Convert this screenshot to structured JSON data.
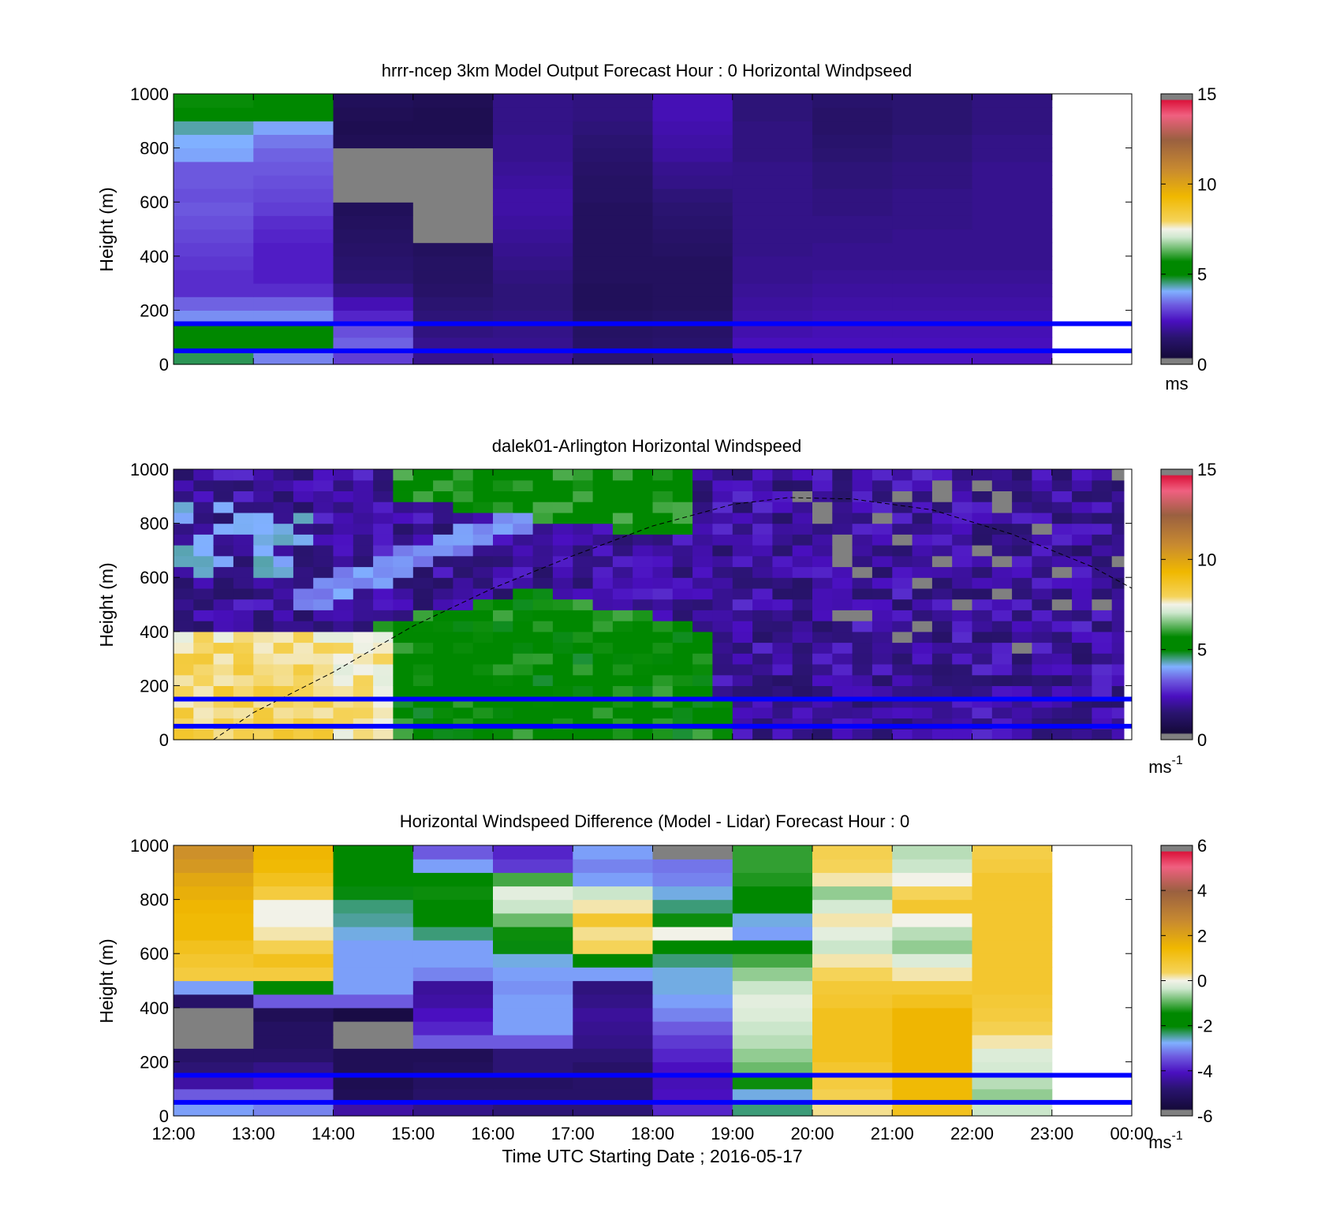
{
  "figure": {
    "xlabel": "Time UTC  Starting Date ; 2016-05-17",
    "x_tick_labels": [
      "12:00",
      "13:00",
      "14:00",
      "15:00",
      "16:00",
      "17:00",
      "18:00",
      "19:00",
      "20:00",
      "21:00",
      "22:00",
      "23:00",
      "00:00"
    ]
  },
  "panels": [
    {
      "title": "hrrr-ncep 3km Model Output   Forecast Hour : 0 Horizontal Windpseed",
      "ylabel": "Height (m)",
      "colorbar_unit": "ms",
      "colorbar_unit_sup": ""
    },
    {
      "title": "dalek01-Arlington  Horizontal Windspeed",
      "ylabel": "Height (m)",
      "colorbar_unit": "ms",
      "colorbar_unit_sup": "-1"
    },
    {
      "title": "Horizontal Windspeed Difference (Model - Lidar) Forecast Hour : 0",
      "ylabel": "Height (m)",
      "colorbar_unit": "ms",
      "colorbar_unit_sup": "-1"
    }
  ],
  "chart_data": [
    {
      "type": "heatmap",
      "title": "hrrr-ncep 3km Model Output   Forecast Hour : 0 Horizontal Windpseed",
      "xlabel": "",
      "ylabel": "Height (m)",
      "x_hours": [
        12,
        13,
        14,
        15,
        16,
        17,
        18,
        19,
        20,
        21,
        22,
        23,
        24
      ],
      "xlim": [
        12,
        24
      ],
      "ylim": [
        0,
        1000
      ],
      "yticks": [
        0,
        200,
        400,
        600,
        800,
        1000
      ],
      "colorbar": {
        "range": [
          0,
          15
        ],
        "ticks": [
          0,
          5,
          10,
          15
        ],
        "unit": "ms",
        "colormap": "purple-blue-green-white-yellow-brown-red"
      },
      "reference_lines_m": [
        50,
        150
      ],
      "reference_line_color": "#0000ff",
      "column_hours": [
        12,
        13,
        14,
        15,
        16,
        17,
        18,
        19,
        20,
        21,
        22
      ],
      "row_heights_m": [
        25,
        75,
        125,
        175,
        225,
        275,
        325,
        375,
        425,
        475,
        525,
        575,
        625,
        675,
        725,
        775,
        825,
        875,
        925,
        975
      ],
      "speed_ms": [
        [
          4.5,
          3.5,
          2.8,
          1.6,
          1.8,
          1.2,
          1.3,
          2.2,
          2.3,
          2.3,
          2.3
        ],
        [
          5.0,
          5.0,
          3.2,
          1.6,
          1.6,
          1.0,
          1.1,
          2.2,
          2.2,
          2.2,
          2.2
        ],
        [
          5.0,
          5.0,
          3.0,
          1.4,
          1.5,
          0.9,
          1.0,
          2.0,
          2.1,
          2.1,
          2.1
        ],
        [
          3.6,
          3.6,
          2.5,
          1.3,
          1.4,
          0.8,
          0.9,
          1.9,
          2.0,
          2.0,
          2.0
        ],
        [
          3.2,
          3.2,
          2.1,
          1.2,
          1.3,
          0.7,
          0.8,
          1.8,
          1.9,
          1.9,
          1.9
        ],
        [
          2.6,
          2.6,
          1.5,
          1.0,
          1.3,
          0.7,
          0.8,
          1.7,
          1.8,
          1.8,
          1.8
        ],
        [
          2.6,
          2.4,
          1.2,
          0.9,
          1.4,
          0.8,
          0.8,
          1.6,
          1.7,
          1.7,
          1.7
        ],
        [
          2.7,
          2.4,
          1.1,
          0.9,
          1.5,
          0.8,
          0.8,
          1.6,
          1.6,
          1.6,
          1.6
        ],
        [
          2.8,
          2.4,
          1.0,
          0.8,
          1.6,
          0.8,
          0.9,
          1.5,
          1.6,
          1.6,
          1.6
        ],
        [
          2.9,
          2.5,
          0.9,
          null,
          1.7,
          0.8,
          1.0,
          1.5,
          1.5,
          1.6,
          1.6
        ],
        [
          3.0,
          2.6,
          0.8,
          null,
          1.8,
          0.8,
          1.1,
          1.5,
          1.5,
          1.5,
          1.6
        ],
        [
          3.1,
          2.8,
          0.7,
          null,
          1.9,
          0.8,
          1.2,
          1.5,
          1.4,
          1.5,
          1.6
        ],
        [
          3.0,
          2.9,
          null,
          null,
          1.9,
          0.9,
          1.3,
          1.5,
          1.4,
          1.5,
          1.6
        ],
        [
          3.1,
          3.0,
          null,
          null,
          1.8,
          0.9,
          1.5,
          1.5,
          1.3,
          1.4,
          1.6
        ],
        [
          3.1,
          3.1,
          null,
          null,
          1.7,
          1.0,
          1.6,
          1.5,
          1.3,
          1.4,
          1.6
        ],
        [
          3.8,
          3.2,
          null,
          null,
          1.6,
          1.1,
          1.8,
          1.4,
          1.2,
          1.3,
          1.5
        ],
        [
          3.9,
          3.4,
          0.6,
          0.6,
          1.6,
          1.2,
          1.9,
          1.4,
          1.1,
          1.3,
          1.5
        ],
        [
          4.2,
          3.8,
          0.5,
          0.5,
          1.5,
          1.3,
          2.0,
          1.4,
          1.0,
          1.2,
          1.4
        ],
        [
          5.4,
          5.2,
          0.6,
          0.5,
          1.5,
          1.4,
          2.1,
          1.3,
          1.0,
          1.2,
          1.4
        ],
        [
          5.6,
          5.4,
          0.7,
          0.6,
          1.5,
          1.4,
          2.1,
          1.3,
          1.1,
          1.2,
          1.4
        ]
      ]
    },
    {
      "type": "heatmap",
      "title": "dalek01-Arlington  Horizontal Windspeed",
      "xlabel": "",
      "ylabel": "Height (m)",
      "x_hours": [
        12,
        13,
        14,
        15,
        16,
        17,
        18,
        19,
        20,
        21,
        22,
        23,
        24
      ],
      "xlim": [
        12,
        24
      ],
      "ylim": [
        0,
        1000
      ],
      "yticks": [
        0,
        200,
        400,
        600,
        800,
        1000
      ],
      "colorbar": {
        "range": [
          0,
          15
        ],
        "ticks": [
          0,
          5,
          10,
          15
        ],
        "unit": "ms-1",
        "colormap": "purple-blue-green-white-yellow-brown-red"
      },
      "reference_lines_m": [
        50,
        150
      ],
      "reference_line_color": "#0000ff",
      "boundary_layer_height_m": [
        [
          12.5,
          0
        ],
        [
          13,
          100
        ],
        [
          14,
          250
        ],
        [
          15,
          420
        ],
        [
          16,
          560
        ],
        [
          17,
          680
        ],
        [
          18,
          790
        ],
        [
          19,
          870
        ],
        [
          19.7,
          895
        ],
        [
          20.5,
          890
        ],
        [
          21.5,
          850
        ],
        [
          22.5,
          760
        ],
        [
          23.5,
          640
        ],
        [
          24,
          560
        ]
      ],
      "boundary_layer_style": "black dashed",
      "time_bins_per_hour": 4,
      "height_bins_m": 40
    },
    {
      "type": "heatmap",
      "title": "Horizontal Windspeed Difference (Model - Lidar) Forecast Hour : 0",
      "xlabel": "Time UTC  Starting Date ; 2016-05-17",
      "ylabel": "Height (m)",
      "x_hours": [
        12,
        13,
        14,
        15,
        16,
        17,
        18,
        19,
        20,
        21,
        22,
        23,
        24
      ],
      "xlim": [
        12,
        24
      ],
      "ylim": [
        0,
        1000
      ],
      "yticks": [
        0,
        200,
        400,
        600,
        800,
        1000
      ],
      "colorbar": {
        "range": [
          -6,
          6
        ],
        "ticks": [
          -6,
          -4,
          -2,
          0,
          2,
          4,
          6
        ],
        "unit": "ms-1",
        "colormap": "purple-blue-green-white-yellow-brown-red"
      },
      "reference_lines_m": [
        50,
        150
      ],
      "reference_line_color": "#0000ff",
      "column_hours": [
        12,
        13,
        14,
        15,
        16,
        17,
        18,
        19,
        20,
        21,
        22
      ],
      "row_heights_m": [
        25,
        75,
        125,
        175,
        225,
        275,
        325,
        375,
        425,
        475,
        525,
        575,
        625,
        675,
        725,
        775,
        825,
        875,
        925,
        975
      ],
      "difference_ms": [
        [
          -3.0,
          -3.2,
          -4.5,
          -4.8,
          -5.0,
          -5.0,
          -4.0,
          -2.5,
          0.3,
          1.2,
          -0.5
        ],
        [
          -3.5,
          -3.5,
          -5.5,
          -5.2,
          -5.2,
          -5.2,
          -4.2,
          -2.8,
          0.6,
          1.5,
          -0.8
        ],
        [
          -4.5,
          -4.2,
          -5.6,
          -5.3,
          -5.3,
          -5.2,
          -4.3,
          -1.5,
          0.8,
          1.5,
          -0.6
        ],
        [
          -5.0,
          -4.8,
          -5.5,
          -5.4,
          -5.0,
          -5.2,
          -4.2,
          -1.0,
          1.0,
          1.6,
          -0.4
        ],
        [
          -5.2,
          -5.2,
          -5.5,
          -5.5,
          -5.0,
          -5.0,
          -4.0,
          -0.8,
          1.2,
          1.6,
          -0.3
        ],
        [
          null,
          -5.3,
          null,
          -3.5,
          -3.5,
          -4.8,
          -3.8,
          -0.6,
          1.2,
          1.6,
          0.2
        ],
        [
          null,
          -5.3,
          null,
          -4.0,
          -3.0,
          -4.7,
          -3.5,
          -0.5,
          1.2,
          1.6,
          0.6
        ],
        [
          null,
          -5.5,
          -5.8,
          -4.2,
          -3.0,
          -4.6,
          -3.2,
          -0.3,
          1.2,
          1.6,
          0.8
        ],
        [
          -5.2,
          -3.5,
          -3.5,
          -4.5,
          -3.0,
          -4.8,
          -3.0,
          -0.2,
          1.0,
          1.2,
          0.9
        ],
        [
          -3.0,
          -1.8,
          -3.0,
          -4.6,
          -3.1,
          -4.9,
          -2.8,
          -0.5,
          0.9,
          0.9,
          1.0
        ],
        [
          0.8,
          0.8,
          -3.0,
          -3.2,
          -3.0,
          -3.0,
          -2.8,
          -0.8,
          0.5,
          0.2,
          1.0
        ],
        [
          1.0,
          1.2,
          -3.0,
          -3.0,
          -2.8,
          -2.0,
          -2.5,
          -1.2,
          0.2,
          -0.3,
          1.0
        ],
        [
          1.2,
          0.6,
          -3.0,
          -3.0,
          -2.2,
          0.5,
          -2.0,
          -2.0,
          -0.5,
          -0.8,
          1.0
        ],
        [
          1.5,
          0.2,
          -2.8,
          -2.5,
          -1.5,
          0.3,
          0.0,
          -3.0,
          -0.2,
          -0.6,
          1.0
        ],
        [
          1.5,
          0.0,
          -2.6,
          -2.0,
          -1.0,
          1.0,
          -1.5,
          -2.8,
          0.2,
          0.0,
          1.0
        ],
        [
          1.6,
          0.0,
          -2.5,
          -1.8,
          -0.5,
          0.2,
          -2.5,
          -2.0,
          -0.4,
          1.0,
          1.0
        ],
        [
          1.8,
          0.8,
          -2.2,
          -1.5,
          -0.2,
          -0.5,
          -2.8,
          -1.6,
          -0.8,
          0.5,
          1.0
        ],
        [
          2.0,
          1.2,
          -2.0,
          -2.0,
          -1.2,
          -3.0,
          -3.2,
          -1.4,
          0.2,
          0.0,
          1.0
        ],
        [
          2.4,
          1.5,
          -1.8,
          -3.0,
          -3.8,
          -3.2,
          -3.3,
          -1.3,
          0.5,
          -0.5,
          0.8
        ],
        [
          2.6,
          1.6,
          -1.6,
          -3.5,
          -4.0,
          -3.0,
          null,
          -1.3,
          0.6,
          -0.6,
          0.7
        ]
      ]
    }
  ]
}
